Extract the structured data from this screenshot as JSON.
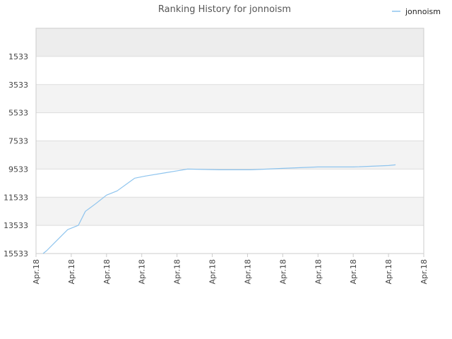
{
  "chart_data": {
    "type": "line",
    "title": "Ranking History for jonnoism",
    "xlabel": "",
    "ylabel": "",
    "y_inverted": true,
    "ylim": [
      15533,
      -467
    ],
    "y_ticks": [
      1533,
      3533,
      5533,
      7533,
      9533,
      11533,
      13533,
      15533
    ],
    "x_tick_labels": [
      "Apr.18",
      "Apr.18",
      "Apr.18",
      "Apr.18",
      "Apr.18",
      "Apr.18",
      "Apr.18",
      "Apr.18",
      "Apr.18",
      "Apr.18",
      "Apr.18",
      "Apr.18"
    ],
    "grid": true,
    "legend_position": "top-right",
    "colors": {
      "line": "#8ec4ee",
      "band_alt": "#f3f3f3",
      "band_top": "#ededed",
      "grid": "#dddddd",
      "axis": "#cccccc"
    },
    "series": [
      {
        "name": "jonnoism",
        "x": [
          0.2,
          0.3,
          0.6,
          0.9,
          1.2,
          1.4,
          1.7,
          2.0,
          2.3,
          2.8,
          3.1,
          3.7,
          4.3,
          5.2,
          6.1,
          7.0,
          8.0,
          9.0,
          10.0,
          10.2
        ],
        "values": [
          15533,
          15333,
          14583,
          13833,
          13533,
          12533,
          11983,
          11383,
          11083,
          10183,
          10033,
          9783,
          9533,
          9583,
          9583,
          9483,
          9383,
          9383,
          9283,
          9233
        ]
      }
    ]
  }
}
